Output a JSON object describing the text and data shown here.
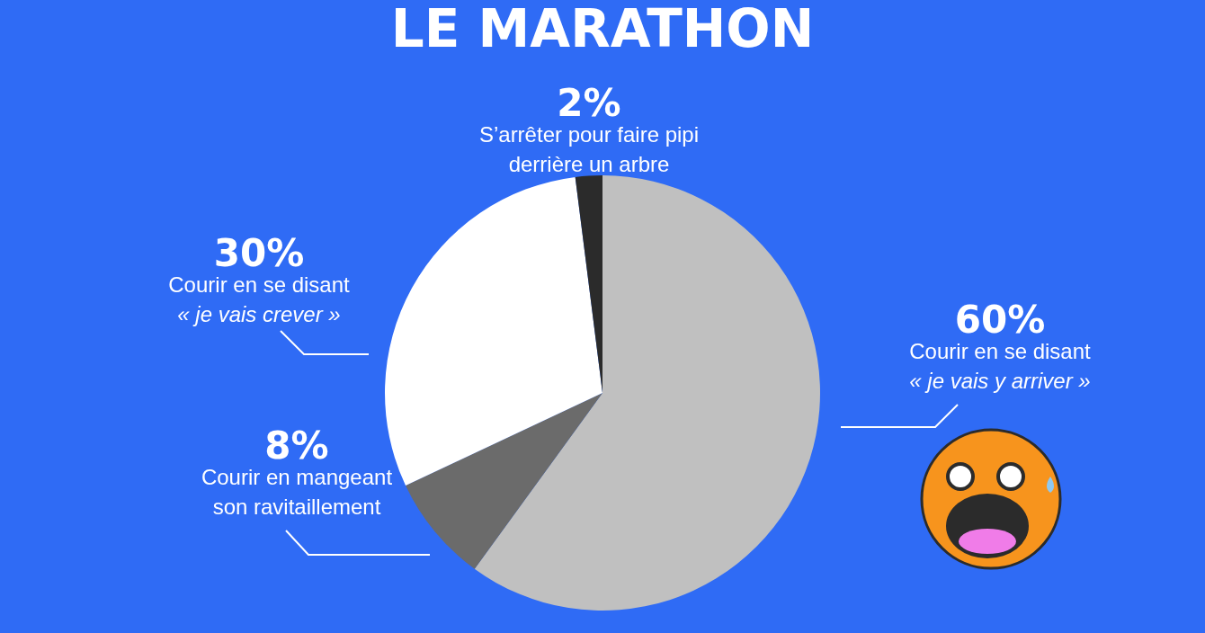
{
  "chart_data": {
    "type": "pie",
    "title": "LE MARATHON",
    "categories": [
      "Courir en se disant\n« je vais y arriver »",
      "Courir en mangeant\nson ravitaillement",
      "Courir en se disant\n« je vais crever »",
      "S’arrêter pour faire pipi\nderrière un arbre"
    ],
    "values": [
      60,
      8,
      30,
      2
    ],
    "value_labels": [
      "60%",
      "8%",
      "30%",
      "2%"
    ],
    "colors": [
      "#c0c0c0",
      "#6b6b6b",
      "#ffffff",
      "#2b2b2b"
    ],
    "legend": false
  }
}
